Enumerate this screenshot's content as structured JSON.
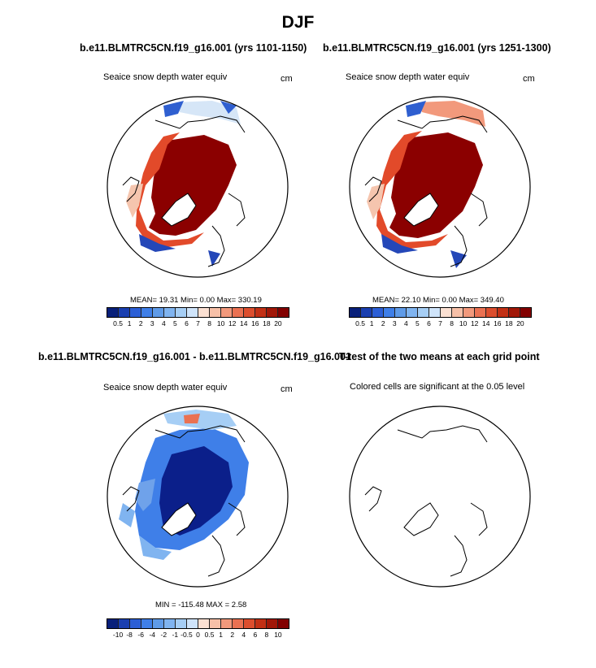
{
  "header": {
    "title": "DJF"
  },
  "panels": [
    {
      "id": "p1",
      "title": "b.e11.BLMTRC5CN.f19_g16.001 (yrs 1101-1150)",
      "field_label": "Seaice snow depth water equiv",
      "units": "cm",
      "stats": "MEAN=  19.31  Min=   0.00  Max= 330.19"
    },
    {
      "id": "p2",
      "title": "b.e11.BLMTRC5CN.f19_g16.001 (yrs 1251-1300)",
      "field_label": "Seaice snow depth water equiv",
      "units": "cm",
      "stats": "MEAN=  22.10  Min=   0.00  Max= 349.40"
    },
    {
      "id": "p3",
      "title": "b.e11.BLMTRC5CN.f19_g16.001 - b.e11.BLMTRC5CN.f19_g16.001",
      "field_label": "Seaice snow depth water equiv",
      "units": "cm",
      "stats": "MIN = -115.48  MAX =   2.58"
    },
    {
      "id": "p4",
      "title": "T-test of the two means at each grid point",
      "field_label": "Colored cells are significant at the 0.05 level"
    }
  ],
  "colorbars": {
    "abs": {
      "labels": [
        "0.5",
        "1",
        "2",
        "3",
        "4",
        "5",
        "6",
        "7",
        "8",
        "10",
        "12",
        "14",
        "16",
        "18",
        "20"
      ],
      "colors": [
        "#08207a",
        "#1a3fb0",
        "#2c5fd6",
        "#3f7fe8",
        "#5f9be8",
        "#80b4f0",
        "#a6cef5",
        "#cfe4fa",
        "#fbe0d2",
        "#f7c0a8",
        "#f2997c",
        "#ea7152",
        "#dc4e2e",
        "#c23015",
        "#a11708",
        "#820000"
      ]
    },
    "diff": {
      "labels": [
        "-10",
        "-8",
        "-6",
        "-4",
        "-2",
        "-1",
        "-0.5",
        "0",
        "0.5",
        "1",
        "2",
        "4",
        "6",
        "8",
        "10"
      ],
      "colors": [
        "#08207a",
        "#1a3fb0",
        "#2c5fd6",
        "#3f7fe8",
        "#5f9be8",
        "#80b4f0",
        "#a6cef5",
        "#cfe4fa",
        "#fbe0d2",
        "#f7c0a8",
        "#f2997c",
        "#ea7152",
        "#dc4e2e",
        "#c23015",
        "#a11708",
        "#820000"
      ]
    }
  }
}
